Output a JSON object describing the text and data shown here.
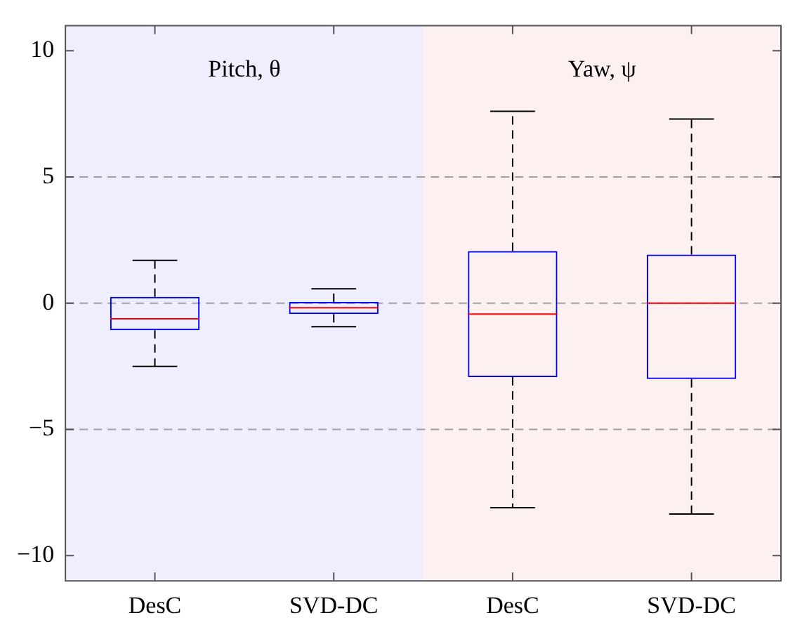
{
  "chart_data": {
    "type": "box",
    "categories": [
      "DesC",
      "SVD-DC",
      "DesC",
      "SVD-DC"
    ],
    "boxes": [
      {
        "low": -2.5,
        "q1": -1.07,
        "median": -0.62,
        "q3": 0.25,
        "high": 1.7
      },
      {
        "low": -0.93,
        "q1": -0.43,
        "median": -0.18,
        "q3": 0.05,
        "high": 0.57
      },
      {
        "low": -8.1,
        "q1": -2.93,
        "median": -0.43,
        "q3": 2.07,
        "high": 7.6
      },
      {
        "low": -8.35,
        "q1": -3.0,
        "median": 0,
        "q3": 1.93,
        "high": 7.3
      }
    ],
    "color": "#0000ff",
    "ylim": [
      -11,
      11
    ],
    "yticks": [
      10,
      5,
      0,
      {
        "value": -5,
        "label": "−5"
      },
      {
        "value": -10,
        "label": "−10"
      }
    ],
    "annotations": [
      "Pitch, θ",
      "Yaw, ψ"
    ],
    "ref_lines": [
      {
        "axis": "y",
        "value": 5,
        "line_style": "dashed",
        "color": "#a0a0a0"
      },
      {
        "axis": "y",
        "value": 0,
        "line_style": "dashed",
        "color": "#a0a0a0"
      },
      {
        "axis": "y",
        "value": -5,
        "line_style": "dashed",
        "color": "#a0a0a0"
      }
    ],
    "grid": false,
    "legend": false
  }
}
